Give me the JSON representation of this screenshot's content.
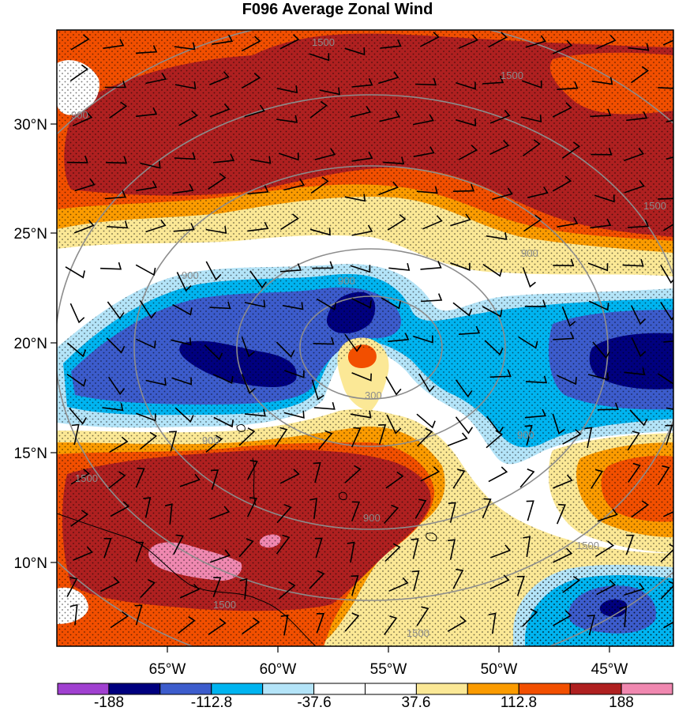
{
  "title": "F096 Average Zonal Wind",
  "map": {
    "lat_ticks": [
      "30°N",
      "25°N",
      "20°N",
      "15°N",
      "10°N"
    ],
    "lon_ticks": [
      "65°W",
      "60°W",
      "55°W",
      "50°W",
      "45°W"
    ],
    "contour_labels": [
      "1500",
      "1500",
      "1500",
      "900",
      "900",
      "900",
      "300",
      "900",
      "900",
      "1500",
      "1500",
      "1500",
      "900",
      "1500",
      "900"
    ]
  },
  "colorbar": {
    "colors": [
      "#a040d0",
      "#00007f",
      "#3c5ccc",
      "#00b4f0",
      "#b4e4f8",
      "#ffffff",
      "#ffffff",
      "#fbe896",
      "#fb9b00",
      "#f24f00",
      "#af2020",
      "#f088b0"
    ],
    "labels": [
      "-188",
      "-112.8",
      "-37.6",
      "37.6",
      "112.8",
      "188"
    ]
  }
}
